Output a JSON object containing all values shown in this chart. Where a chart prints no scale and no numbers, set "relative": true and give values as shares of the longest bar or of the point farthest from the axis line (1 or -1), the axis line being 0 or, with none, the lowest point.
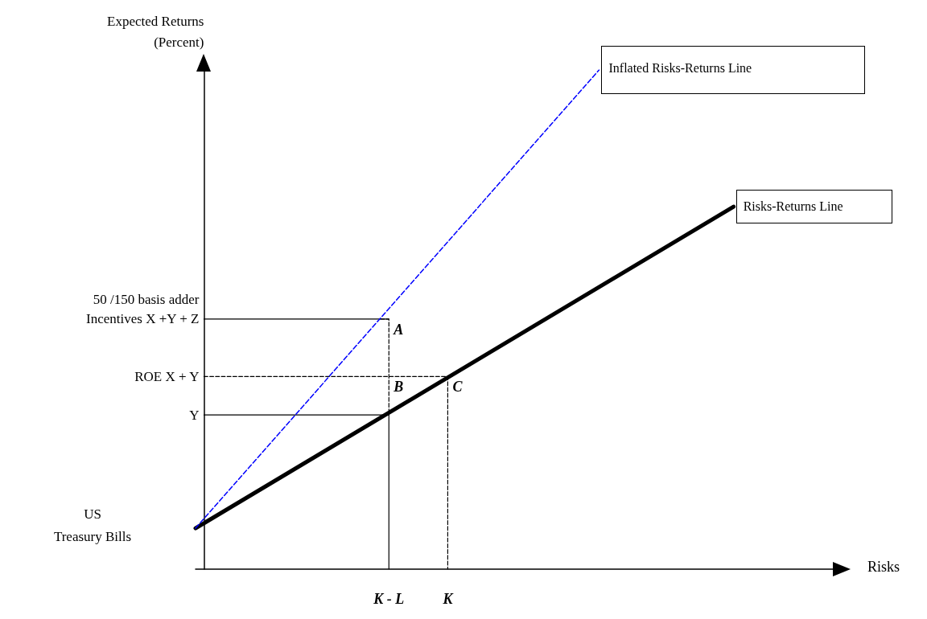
{
  "chart_data": {
    "type": "line",
    "relative": true,
    "xlabel": "Risks",
    "ylabel": "Expected Returns\n(Percent)",
    "categories": [
      null,
      null,
      null,
      null,
      null,
      null,
      null,
      null,
      null,
      null,
      null,
      null,
      null,
      null,
      null,
      null,
      null,
      null,
      null,
      null,
      null,
      null,
      null,
      "K - L",
      null,
      null,
      null,
      null,
      null,
      null,
      "K",
      null,
      null,
      null,
      null,
      null,
      null,
      null,
      null,
      null,
      null,
      null,
      null,
      null,
      null,
      null,
      null,
      null,
      null,
      null,
      null,
      null,
      null,
      null,
      null,
      null,
      null,
      null,
      null,
      null,
      null,
      null,
      null,
      null,
      null,
      null,
      null,
      null,
      null,
      null,
      null,
      null,
      null,
      null,
      null,
      null,
      null
    ],
    "series": [
      {
        "name": "Risks-Returns Line",
        "color": "#000000",
        "line_style": "solid",
        "values": [
          0.082,
          null,
          null,
          null,
          null,
          null,
          null,
          null,
          null,
          null,
          null,
          null,
          null,
          null,
          null,
          null,
          null,
          null,
          null,
          null,
          null,
          null,
          null,
          null,
          null,
          null,
          null,
          null,
          null,
          null,
          null,
          null,
          null,
          null,
          null,
          null,
          null,
          null,
          null,
          null,
          null,
          null,
          null,
          null,
          null,
          null,
          null,
          null,
          null,
          null,
          null,
          null,
          null,
          null,
          null,
          null,
          null,
          null,
          null,
          null,
          null,
          null,
          null,
          null,
          0.726,
          null,
          null,
          null,
          null,
          null,
          null,
          null,
          null,
          null,
          null,
          null,
          null
        ]
      },
      {
        "name": "Inflated Risks-Returns Line",
        "color": "#0000ff",
        "line_style": "dashed",
        "values": [
          0.082,
          null,
          null,
          null,
          null,
          null,
          null,
          null,
          null,
          null,
          null,
          null,
          null,
          null,
          null,
          null,
          null,
          null,
          null,
          null,
          null,
          null,
          null,
          null,
          null,
          null,
          null,
          null,
          null,
          null,
          null,
          null,
          null,
          null,
          null,
          null,
          null,
          null,
          null,
          null,
          null,
          null,
          null,
          null,
          null,
          null,
          null,
          null,
          1,
          null,
          null,
          null,
          null,
          null,
          null,
          null,
          null,
          null,
          null,
          null,
          null,
          null,
          null,
          null,
          null,
          null,
          null,
          null,
          null,
          null,
          null,
          null,
          null,
          null,
          null,
          null,
          null
        ]
      },
      {
        "name": "Y",
        "type": "step",
        "color": "#000000",
        "line_style": "solid",
        "values": [
          null,
          0.309,
          null,
          null,
          null,
          null,
          null,
          null,
          null,
          null,
          null,
          null,
          null,
          null,
          null,
          null,
          null,
          null,
          null,
          null,
          null,
          null,
          0.309,
          0,
          null,
          null,
          null,
          null,
          null,
          null,
          null,
          null,
          null,
          null,
          null,
          null,
          null,
          null,
          null,
          null,
          null,
          null,
          null,
          null,
          null,
          null,
          null,
          null,
          null,
          null,
          null,
          null,
          null,
          null,
          null,
          null,
          null,
          null,
          null,
          null,
          null,
          null,
          null,
          null,
          null,
          null,
          null,
          null,
          null,
          null,
          null,
          null,
          null,
          null,
          null,
          null,
          null
        ]
      },
      {
        "name": "ROE X + Y",
        "type": "step",
        "color": "#000000",
        "line_style": "dashed",
        "values": [
          null,
          0.386,
          null,
          null,
          null,
          null,
          null,
          null,
          null,
          null,
          null,
          null,
          null,
          null,
          null,
          null,
          null,
          null,
          null,
          null,
          null,
          null,
          null,
          null,
          null,
          null,
          null,
          null,
          null,
          0.386,
          0,
          null,
          null,
          null,
          null,
          null,
          null,
          null,
          null,
          null,
          null,
          null,
          null,
          null,
          null,
          null,
          null,
          null,
          null,
          null,
          null,
          null,
          null,
          null,
          null,
          null,
          null,
          null,
          null,
          null,
          null,
          null,
          null,
          null,
          null,
          null,
          null,
          null,
          null,
          null,
          null,
          null,
          null,
          null,
          null,
          null,
          null
        ]
      },
      {
        "name": "50 /150 basis adder\nIncentives X +Y + Z",
        "color": "#000000",
        "line_style": "solid",
        "values": [
          null,
          0.501,
          null,
          null,
          null,
          null,
          null,
          null,
          null,
          null,
          null,
          null,
          null,
          null,
          null,
          null,
          null,
          null,
          null,
          null,
          null,
          null,
          null,
          0.501,
          null,
          null,
          null,
          null,
          null,
          null,
          null,
          null,
          null,
          null,
          null,
          null,
          null,
          null,
          null,
          null,
          null,
          null,
          null,
          null,
          null,
          null,
          null,
          null,
          null,
          null,
          null,
          null,
          null,
          null,
          null,
          null,
          null,
          null,
          null,
          null,
          null,
          null,
          null,
          null,
          null,
          null,
          null,
          null,
          null,
          null,
          null,
          null,
          null,
          null,
          null,
          null,
          null
        ]
      },
      {
        "type": "step",
        "color": "#000000",
        "line_style": "dashed",
        "values": [
          null,
          null,
          null,
          null,
          null,
          null,
          null,
          null,
          null,
          null,
          null,
          null,
          null,
          null,
          null,
          null,
          null,
          null,
          null,
          null,
          null,
          null,
          0.501,
          0.309,
          null,
          null,
          null,
          null,
          null,
          null,
          null,
          null,
          null,
          null,
          null,
          null,
          null,
          null,
          null,
          null,
          null,
          null,
          null,
          null,
          null,
          null,
          null,
          null,
          null,
          null,
          null,
          null,
          null,
          null,
          null,
          null,
          null,
          null,
          null,
          null,
          null,
          null,
          null,
          null,
          null,
          null,
          null,
          null,
          null,
          null,
          null,
          null,
          null,
          null,
          null,
          null,
          null
        ]
      }
    ],
    "annotations": [
      "US\nTreasury Bills",
      {
        "text": "A",
        "x": "K - L",
        "y": 0.501
      },
      {
        "text": "B",
        "x": "K - L",
        "y": 0.386
      },
      {
        "text": "C",
        "x": "K",
        "y": 0.386
      }
    ]
  }
}
